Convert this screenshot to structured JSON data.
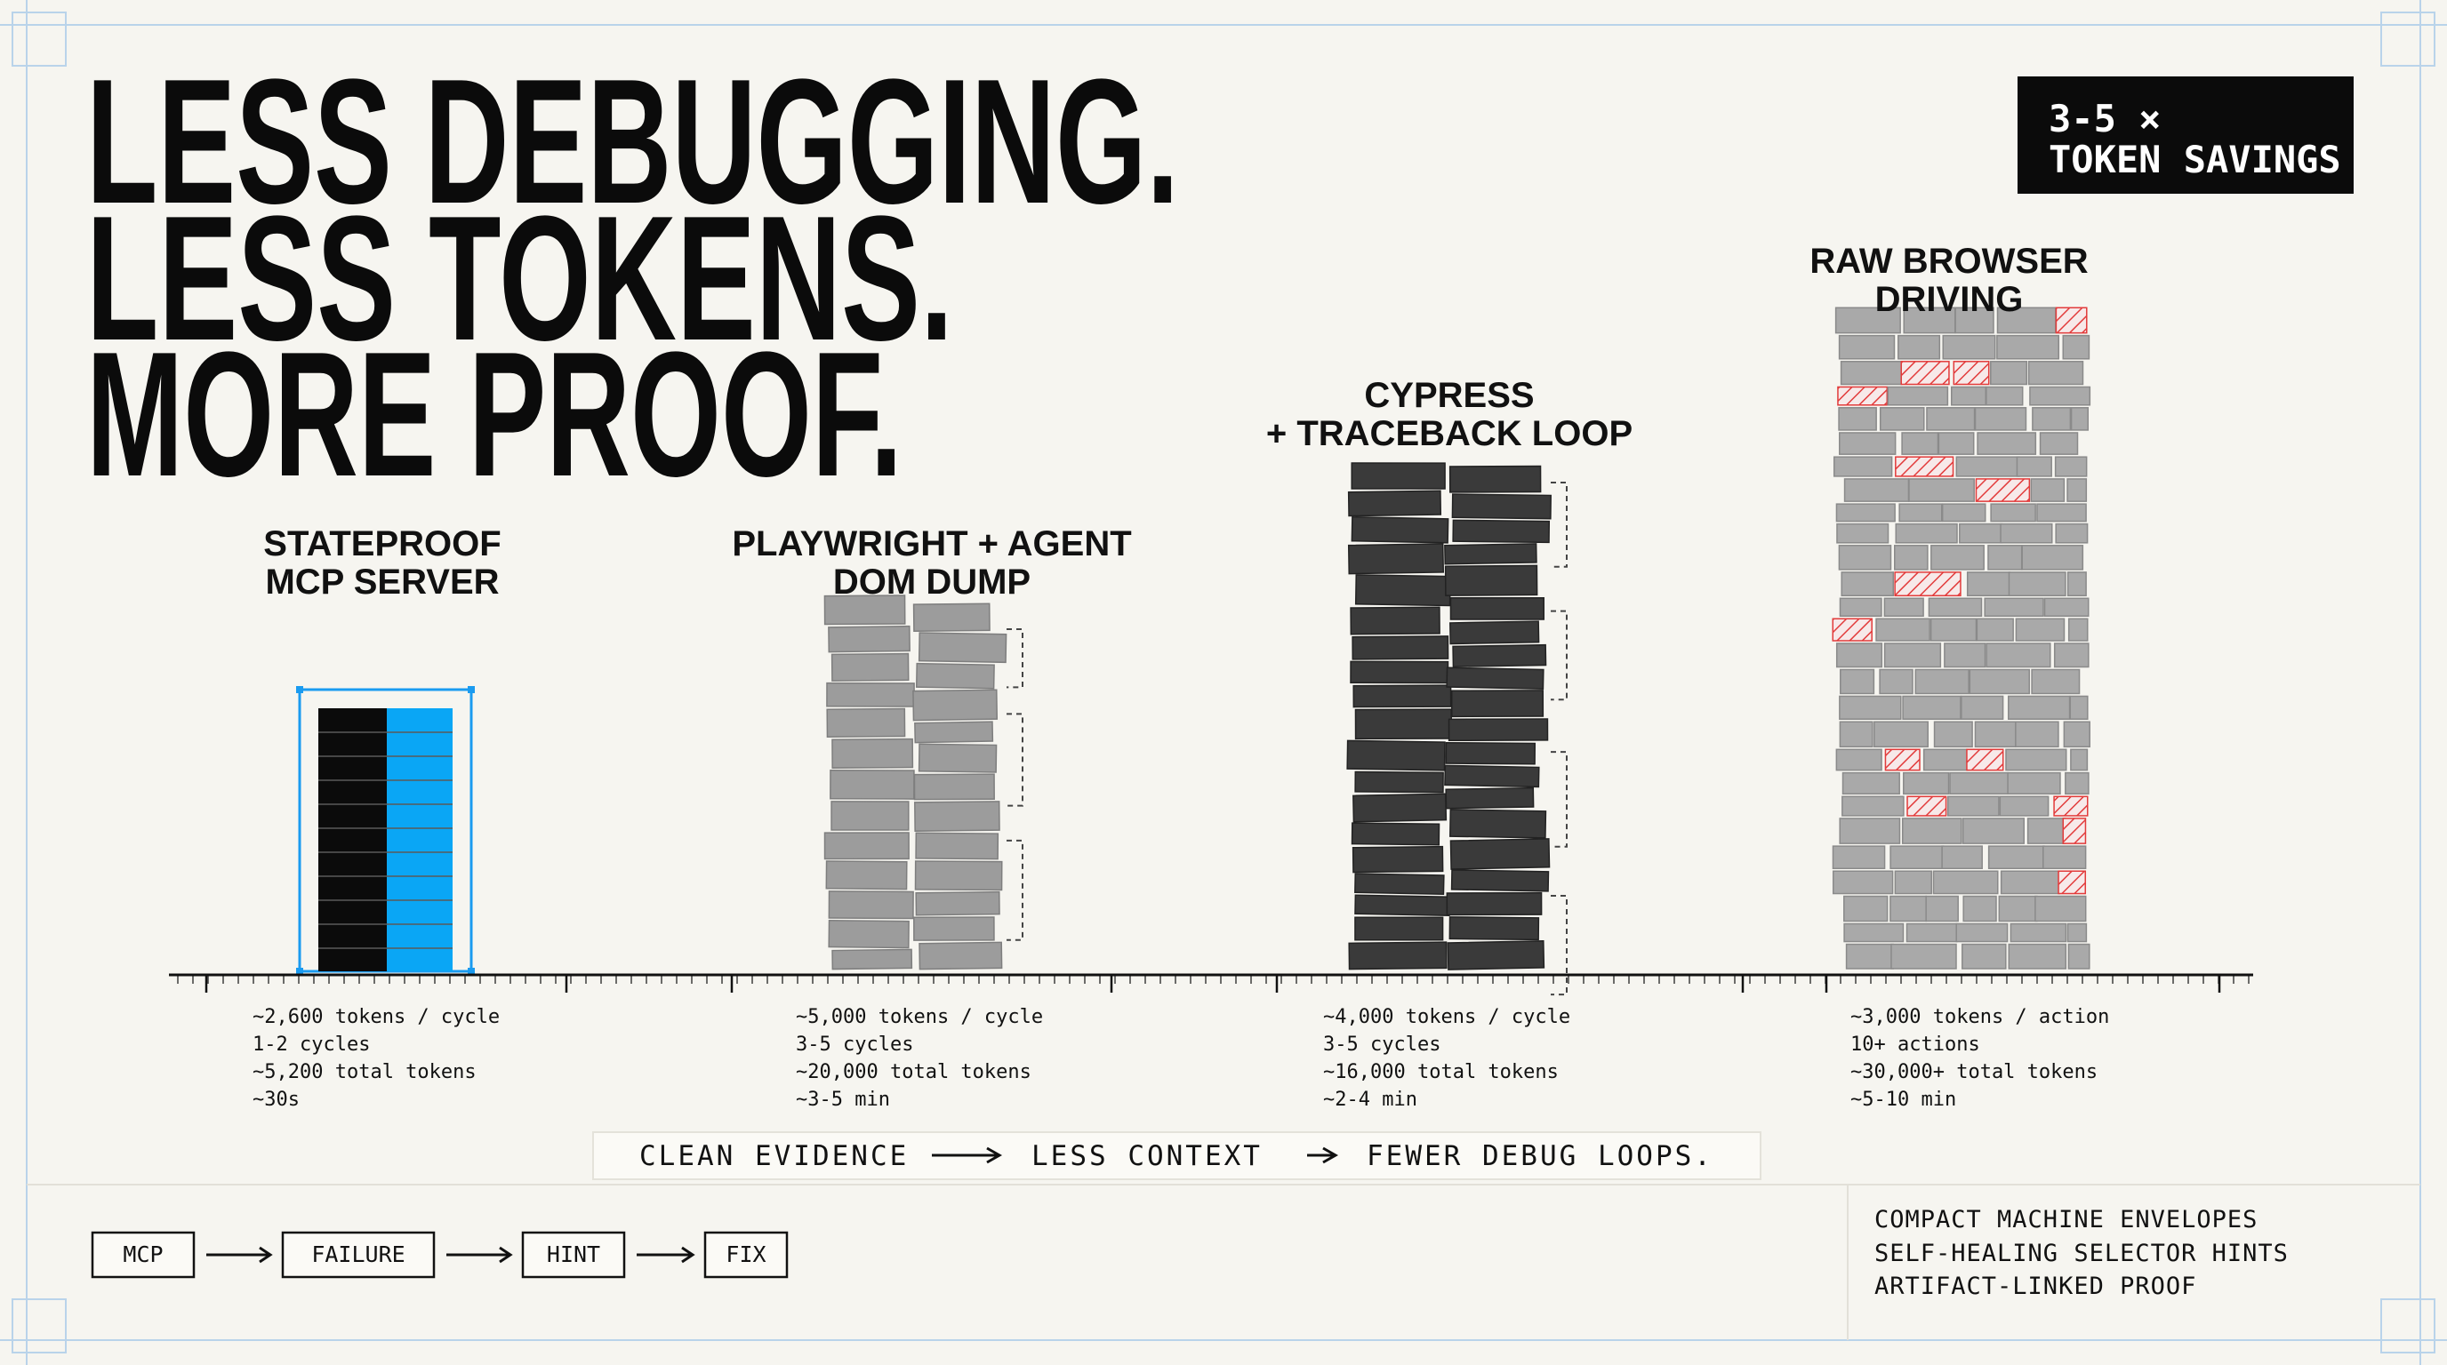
{
  "header": {
    "title": [
      "LESS DEBUGGING.",
      "LESS TOKENS.",
      "MORE PROOF."
    ],
    "badge": [
      "3-5 ×",
      "TOKEN SAVINGS"
    ]
  },
  "columns": [
    {
      "label": [
        "STATEPROOF",
        "MCP SERVER"
      ],
      "stats": [
        "~2,600 tokens / cycle",
        "1-2 cycles",
        "~5,200 total tokens",
        "~30s"
      ]
    },
    {
      "label": [
        "PLAYWRIGHT + AGENT",
        "DOM DUMP"
      ],
      "stats": [
        "~5,000 tokens / cycle",
        "3-5 cycles",
        "~20,000 total tokens",
        "~3-5 min"
      ]
    },
    {
      "label": [
        "CYPRESS",
        "+ TRACEBACK LOOP"
      ],
      "stats": [
        "~4,000 tokens / cycle",
        "3-5 cycles",
        "~16,000 total tokens",
        "~2-4 min"
      ]
    },
    {
      "label": [
        "RAW BROWSER",
        "DRIVING"
      ],
      "stats": [
        "~3,000 tokens / action",
        "10+ actions",
        "~30,000+ total tokens",
        "~5-10 min"
      ]
    }
  ],
  "banner": [
    "CLEAN EVIDENCE",
    "LESS CONTEXT",
    "FEWER DEBUG LOOPS."
  ],
  "flow": [
    "MCP",
    "FAILURE",
    "HINT",
    "FIX"
  ],
  "features": [
    "COMPACT MACHINE ENVELOPES",
    "SELF-HEALING SELECTOR HINTS",
    "ARTIFACT-LINKED PROOF"
  ]
}
